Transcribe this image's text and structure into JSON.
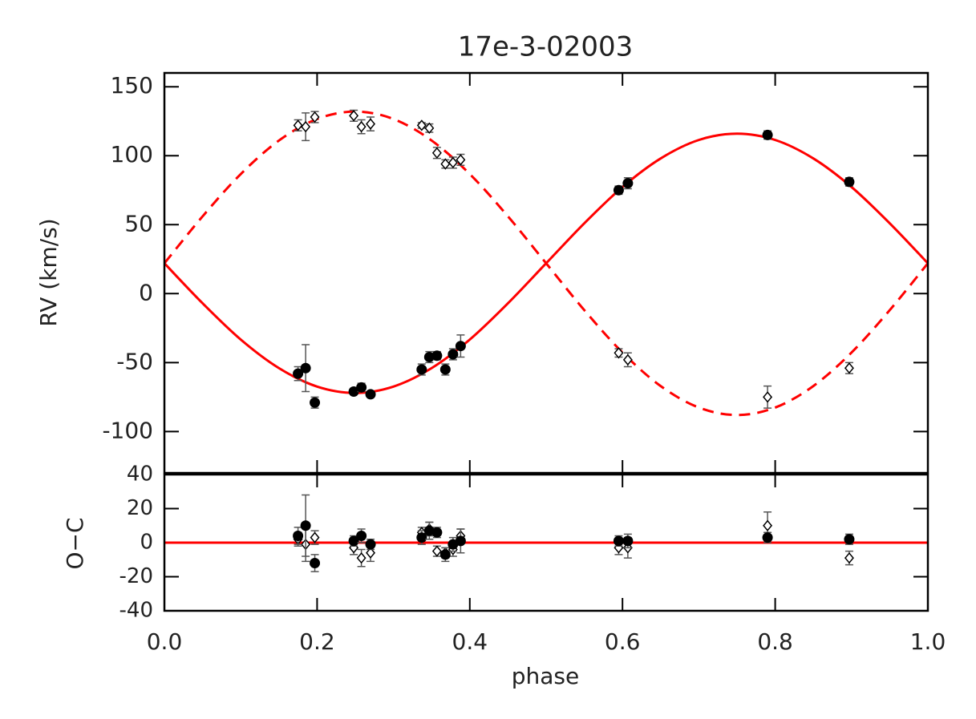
{
  "chart_data": [
    {
      "type": "scatter",
      "title": "17e-3-02003",
      "ylabel": "RV (km/s)",
      "xlim": [
        0,
        1
      ],
      "ylim": [
        -130,
        160
      ],
      "yticks": [
        -100,
        -50,
        0,
        50,
        100,
        150
      ],
      "fits": [
        {
          "color": "#ff0000",
          "dash": false,
          "x": [
            0,
            0.05,
            0.1,
            0.15,
            0.2,
            0.25,
            0.3,
            0.35,
            0.4,
            0.45,
            0.5,
            0.55,
            0.6,
            0.65,
            0.7,
            0.75,
            0.8,
            0.85,
            0.9,
            0.95,
            1
          ],
          "values": [
            22,
            -7.0,
            -33.3,
            -54.0,
            -67.4,
            -72,
            -67.4,
            -54.0,
            -33.3,
            -7.0,
            22,
            51.0,
            77.3,
            98.0,
            111.4,
            116,
            111.4,
            98.0,
            77.3,
            51.0,
            22
          ]
        },
        {
          "color": "#ff0000",
          "dash": true,
          "x": [
            0,
            0.05,
            0.1,
            0.15,
            0.2,
            0.25,
            0.3,
            0.35,
            0.4,
            0.45,
            0.5,
            0.55,
            0.6,
            0.65,
            0.7,
            0.75,
            0.8,
            0.85,
            0.9,
            0.95,
            1
          ],
          "values": [
            22,
            56.0,
            86.7,
            111.0,
            126.6,
            132,
            126.6,
            111.0,
            86.7,
            56.0,
            22,
            -12.0,
            -42.7,
            -67.0,
            -82.6,
            -88,
            -82.6,
            -67.0,
            -42.7,
            -12.0,
            22
          ]
        }
      ],
      "series": [
        {
          "marker": "circle",
          "color": "#000000",
          "x": [
            0.175,
            0.185,
            0.197,
            0.248,
            0.258,
            0.27,
            0.337,
            0.347,
            0.357,
            0.368,
            0.378,
            0.388,
            0.595,
            0.607,
            0.79,
            0.897
          ],
          "values": [
            -58,
            -54,
            -79,
            -71,
            -68,
            -73,
            -55,
            -46,
            -45,
            -55,
            -44,
            -38,
            75,
            80,
            115,
            81
          ],
          "errors": [
            5,
            17,
            4,
            2,
            3,
            2,
            4,
            4,
            3,
            4,
            4,
            8,
            3,
            4,
            3,
            3
          ]
        },
        {
          "marker": "diamond",
          "color": "#000000",
          "x": [
            0.175,
            0.185,
            0.197,
            0.248,
            0.258,
            0.27,
            0.337,
            0.347,
            0.357,
            0.368,
            0.378,
            0.388,
            0.595,
            0.607,
            0.79,
            0.897
          ],
          "values": [
            122,
            121,
            128,
            129,
            121,
            123,
            122,
            120,
            102,
            94,
            95,
            97,
            -43,
            -48,
            -75,
            -54
          ],
          "errors": [
            4,
            10,
            4,
            4,
            5,
            5,
            2,
            3,
            4,
            3,
            4,
            4,
            3,
            5,
            8,
            4
          ]
        }
      ]
    },
    {
      "type": "scatter",
      "xlabel": "phase",
      "ylabel": "O−C",
      "xlim": [
        0,
        1
      ],
      "ylim": [
        -40,
        40
      ],
      "yticks": [
        -40,
        -20,
        0,
        20,
        40
      ],
      "xticks": [
        {
          "value": 0,
          "label": "0.0"
        },
        0.2,
        0.4,
        0.6,
        0.8,
        {
          "value": 1,
          "label": "1.0"
        }
      ],
      "fits": [
        {
          "color": "#ff0000",
          "dash": false,
          "x": [
            0,
            1
          ],
          "values": [
            0,
            0
          ]
        }
      ],
      "series": [
        {
          "marker": "diamond",
          "color": "#000000",
          "x": [
            0.175,
            0.185,
            0.197,
            0.248,
            0.258,
            0.27,
            0.337,
            0.347,
            0.357,
            0.368,
            0.378,
            0.388,
            0.595,
            0.607,
            0.79,
            0.897
          ],
          "values": [
            2,
            -1,
            3,
            -3,
            -9,
            -6,
            6,
            8,
            -5,
            -6,
            -4,
            4,
            -3,
            -3,
            10,
            -9
          ],
          "errors": [
            4,
            10,
            4,
            4,
            5,
            5,
            3,
            4,
            3,
            3,
            4,
            4,
            4,
            6,
            8,
            4
          ]
        },
        {
          "marker": "circle",
          "color": "#000000",
          "x": [
            0.175,
            0.185,
            0.197,
            0.248,
            0.258,
            0.27,
            0.337,
            0.347,
            0.357,
            0.368,
            0.378,
            0.388,
            0.595,
            0.607,
            0.79,
            0.897
          ],
          "values": [
            4,
            10,
            -12,
            1,
            4,
            -1,
            3,
            7,
            6,
            -7,
            -1,
            1,
            1,
            1,
            3,
            2
          ],
          "errors": [
            5,
            18,
            5,
            3,
            4,
            3,
            4,
            5,
            3,
            4,
            4,
            7,
            3,
            4,
            3,
            3
          ]
        }
      ]
    }
  ]
}
